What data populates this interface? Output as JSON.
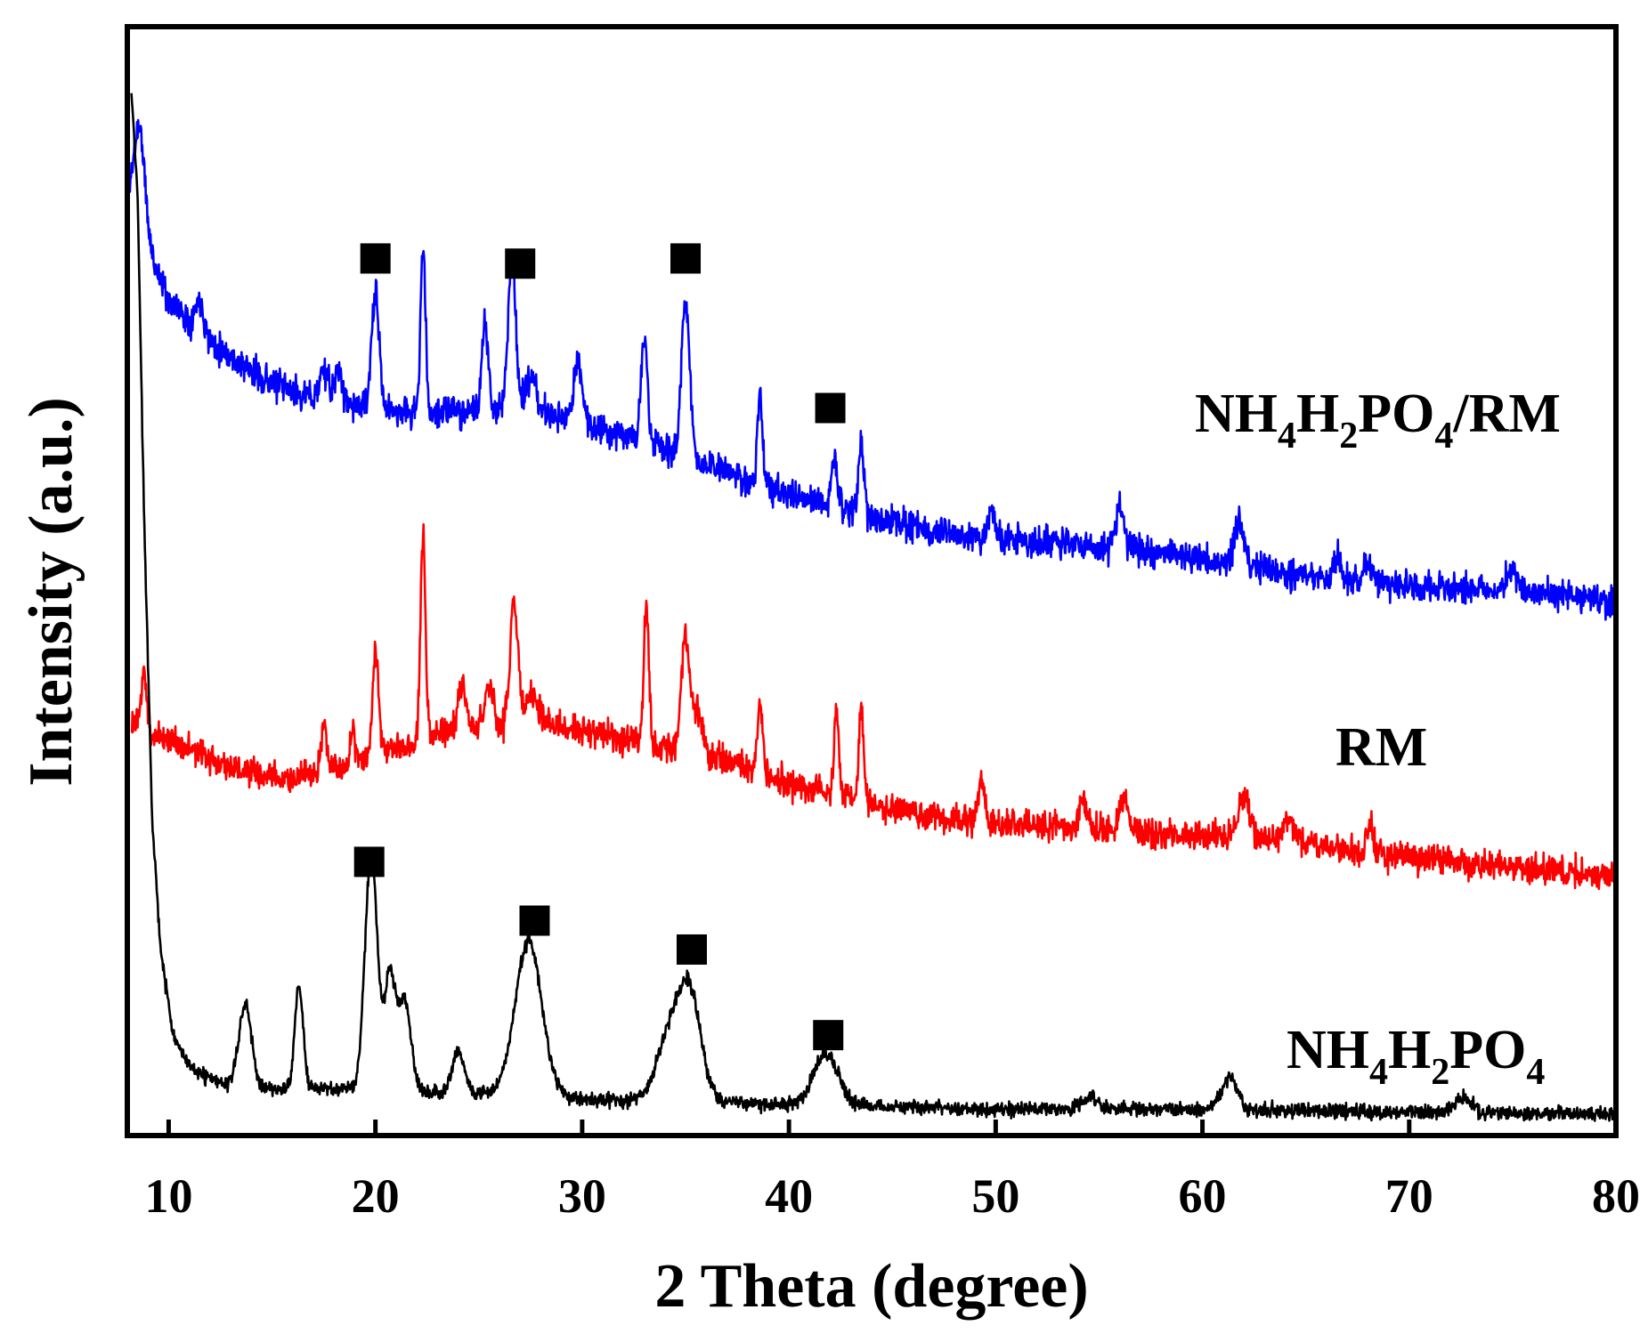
{
  "chart_data": {
    "type": "line",
    "title": "",
    "xlabel": "2 Theta (degree)",
    "ylabel": "Intensity (a.u.)",
    "xlim": [
      8,
      80
    ],
    "xticks": [
      10,
      20,
      30,
      40,
      50,
      60,
      70,
      80
    ],
    "xtick_labels": [
      "10",
      "20",
      "30",
      "40",
      "50",
      "60",
      "70",
      "80"
    ],
    "y_units": "arbitrary (a.u.)",
    "ylim": [
      0,
      100
    ],
    "grid": false,
    "colors": {
      "NH4H2PO4/RM": "#0000ff",
      "RM": "#ff0000",
      "NH4H2PO4": "#000000",
      "frame": "#000000"
    },
    "series": [
      {
        "name": "NH4H2PO4/RM",
        "label_parts": [
          {
            "text": "NH",
            "sub": false
          },
          {
            "text": "4",
            "sub": true
          },
          {
            "text": "H",
            "sub": false
          },
          {
            "text": "2",
            "sub": true
          },
          {
            "text": "PO",
            "sub": false
          },
          {
            "text": "4",
            "sub": true
          },
          {
            "text": "/RM",
            "sub": false
          }
        ],
        "baseline": [
          [
            8.0,
            91
          ],
          [
            8.8,
            86
          ],
          [
            10,
            80
          ],
          [
            12,
            76
          ],
          [
            14,
            73
          ],
          [
            16,
            71
          ],
          [
            18,
            70
          ],
          [
            22,
            69
          ],
          [
            26,
            69.5
          ],
          [
            28,
            69
          ],
          [
            32,
            67
          ],
          [
            36,
            64
          ],
          [
            40,
            61
          ],
          [
            44,
            59
          ],
          [
            48,
            57
          ],
          [
            52,
            56.5
          ],
          [
            56,
            56
          ],
          [
            60,
            55
          ],
          [
            64,
            53.5
          ],
          [
            68,
            52.5
          ],
          [
            72,
            52
          ],
          [
            76,
            51.5
          ],
          [
            80,
            51
          ]
        ],
        "noise": 1.5,
        "peaks": [
          [
            8.6,
            9.5,
            0.25
          ],
          [
            11.5,
            3,
            0.2
          ],
          [
            17.5,
            3,
            0.2
          ],
          [
            18.2,
            3,
            0.2
          ],
          [
            20.0,
            11,
            0.18
          ],
          [
            22.3,
            16,
            0.12
          ],
          [
            25.3,
            8,
            0.15
          ],
          [
            26.6,
            15,
            0.18
          ],
          [
            27.5,
            3,
            0.3
          ],
          [
            29.8,
            6,
            0.2
          ],
          [
            33.0,
            10,
            0.15
          ],
          [
            35.0,
            15,
            0.2
          ],
          [
            38.6,
            9,
            0.12
          ],
          [
            42.2,
            5,
            0.15
          ],
          [
            43.5,
            7,
            0.12
          ],
          [
            49.8,
            3,
            0.15
          ],
          [
            56.0,
            4,
            0.2
          ],
          [
            61.8,
            4,
            0.25
          ],
          [
            66.5,
            2,
            0.2
          ],
          [
            68,
            2,
            0.2
          ],
          [
            75,
            2,
            0.3
          ]
        ],
        "seed": 11
      },
      {
        "name": "RM",
        "label_parts": [
          {
            "text": "RM",
            "sub": false
          }
        ],
        "baseline": [
          [
            8.2,
            39
          ],
          [
            9,
            38
          ],
          [
            10,
            37.5
          ],
          [
            12,
            35.5
          ],
          [
            14,
            34
          ],
          [
            16,
            33.5
          ],
          [
            18,
            34.5
          ],
          [
            20,
            36
          ],
          [
            24,
            38.5
          ],
          [
            28,
            39
          ],
          [
            32,
            37.5
          ],
          [
            36,
            36
          ],
          [
            40,
            33
          ],
          [
            44,
            31
          ],
          [
            48,
            29.5
          ],
          [
            52,
            29
          ],
          [
            56,
            28.5
          ],
          [
            60,
            28
          ],
          [
            64,
            27.5
          ],
          [
            68,
            26.5
          ],
          [
            72,
            25.5
          ],
          [
            76,
            25
          ],
          [
            80,
            24
          ]
        ],
        "noise": 1.4,
        "peaks": [
          [
            8.8,
            6,
            0.12
          ],
          [
            17.5,
            5,
            0.12
          ],
          [
            18.9,
            3,
            0.12
          ],
          [
            20.0,
            10,
            0.15
          ],
          [
            22.3,
            20,
            0.12
          ],
          [
            24.2,
            4,
            0.2
          ],
          [
            25.5,
            4,
            0.2
          ],
          [
            26.7,
            12,
            0.18
          ],
          [
            27.5,
            3,
            0.3
          ],
          [
            33.1,
            13,
            0.12
          ],
          [
            35.0,
            11,
            0.2
          ],
          [
            35.6,
            4,
            0.2
          ],
          [
            38.6,
            7,
            0.12
          ],
          [
            42.3,
            8,
            0.12
          ],
          [
            43.5,
            9,
            0.12
          ],
          [
            49.3,
            4,
            0.15
          ],
          [
            54.2,
            3,
            0.2
          ],
          [
            56.2,
            3,
            0.2
          ],
          [
            62.0,
            4,
            0.3
          ],
          [
            64.2,
            2,
            0.3
          ],
          [
            68.1,
            3,
            0.12
          ]
        ],
        "seed": 23
      },
      {
        "name": "NH4H2PO4",
        "label_parts": [
          {
            "text": "NH",
            "sub": false
          },
          {
            "text": "4",
            "sub": true
          },
          {
            "text": "H",
            "sub": false
          },
          {
            "text": "2",
            "sub": true
          },
          {
            "text": "PO",
            "sub": false
          },
          {
            "text": "4",
            "sub": true
          }
        ],
        "baseline": [
          [
            8.2,
            100
          ],
          [
            8.5,
            90
          ],
          [
            8.8,
            60
          ],
          [
            9.2,
            30
          ],
          [
            9.6,
            17
          ],
          [
            10.2,
            9
          ],
          [
            11,
            5.5
          ],
          [
            12.5,
            4
          ],
          [
            15,
            3.5
          ],
          [
            20,
            3.5
          ],
          [
            25,
            3
          ],
          [
            30,
            2.5
          ],
          [
            40,
            2
          ],
          [
            50,
            1.5
          ],
          [
            60,
            1.5
          ],
          [
            70,
            1.2
          ],
          [
            80,
            1
          ]
        ],
        "noise": 0.7,
        "peaks": [
          [
            13.7,
            8,
            0.3
          ],
          [
            16.3,
            10,
            0.2
          ],
          [
            19.8,
            23,
            0.3
          ],
          [
            20.7,
            11,
            0.25
          ],
          [
            21.4,
            9,
            0.3
          ],
          [
            24.0,
            4,
            0.3
          ],
          [
            27.4,
            15,
            0.65
          ],
          [
            34.2,
            6,
            0.6
          ],
          [
            35.2,
            10,
            0.55
          ],
          [
            41.8,
            5,
            0.6
          ],
          [
            54.5,
            1.2,
            0.4
          ],
          [
            61.3,
            3,
            0.4
          ],
          [
            72.6,
            1.5,
            0.4
          ]
        ],
        "seed": 37
      }
    ],
    "markers": [
      {
        "series": "NH4H2PO4/RM",
        "x": 20.0,
        "y": 84
      },
      {
        "series": "NH4H2PO4/RM",
        "x": 27.0,
        "y": 83.5
      },
      {
        "series": "NH4H2PO4/RM",
        "x": 35.0,
        "y": 84
      },
      {
        "series": "NH4H2PO4/RM",
        "x": 42.0,
        "y": 69.5
      },
      {
        "series": "NH4H2PO4",
        "x": 19.7,
        "y": 25.5
      },
      {
        "series": "NH4H2PO4",
        "x": 27.7,
        "y": 19.8
      },
      {
        "series": "NH4H2PO4",
        "x": 35.3,
        "y": 17
      },
      {
        "series": "NH4H2PO4",
        "x": 41.9,
        "y": 8.7
      }
    ]
  }
}
